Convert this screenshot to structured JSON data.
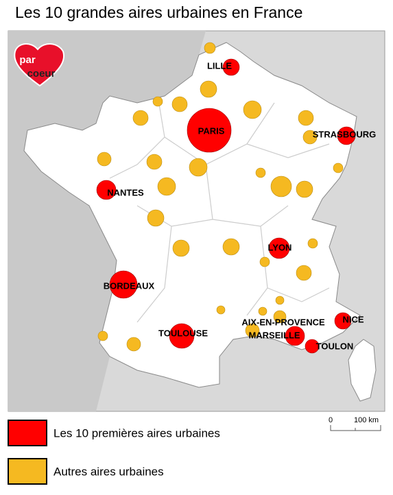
{
  "title": "Les 10 grandes aires urbaines en France",
  "logo": {
    "line1": "par",
    "line2": "coeur"
  },
  "cities": [
    {
      "label": "LILLE"
    },
    {
      "label": "PARIS"
    },
    {
      "label": "STRASBOURG"
    },
    {
      "label": "NANTES"
    },
    {
      "label": "LYON"
    },
    {
      "label": "BORDEAUX"
    },
    {
      "label": "TOULOUSE"
    },
    {
      "label": "AIX-EN-PROVENCE"
    },
    {
      "label": "MARSEILLE"
    },
    {
      "label": "TOULON"
    },
    {
      "label": "NICE"
    }
  ],
  "legend": [
    {
      "label": "Les 10 premières aires urbaines",
      "color": "#ff0000"
    },
    {
      "label": "Autres aires urbaines",
      "color": "#f5b921"
    }
  ],
  "scale": {
    "start": "0",
    "end": "100 km"
  }
}
